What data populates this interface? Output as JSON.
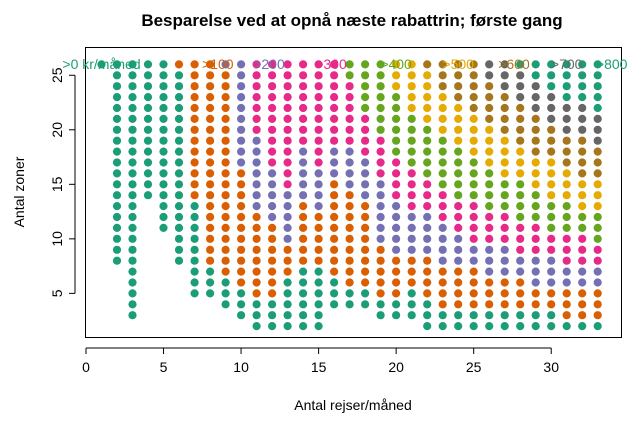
{
  "chart_data": {
    "type": "scatter",
    "title": "Besparelse ved at opnå næste rabattrin; første gang",
    "xlabel": "Antal rejser/måned",
    "ylabel": "Antal zoner",
    "xlim": [
      0,
      34.5
    ],
    "ylim": [
      1,
      27.5
    ],
    "xticks": [
      "0",
      "5",
      "10",
      "15",
      "20",
      "25",
      "30"
    ],
    "yticks": [
      "5",
      "10",
      "15",
      "20",
      "25"
    ],
    "grid": false,
    "legend_position": "top inside plot",
    "legend": [
      {
        "label": ">0 kr/måned",
        "color": "#1B9E77"
      },
      {
        "label": ">100",
        "color": "#D95F02"
      },
      {
        "label": ">200",
        "color": "#7570B3"
      },
      {
        "label": ">300",
        "color": "#E7298A"
      },
      {
        "label": ">400",
        "color": "#66A61E"
      },
      {
        "label": ">500",
        "color": "#E6AB02"
      },
      {
        "label": ">600",
        "color": "#A6761D"
      },
      {
        "label": ">700",
        "color": "#666666"
      },
      {
        "label": ">800",
        "color": "#1B9E77"
      }
    ],
    "columns": [
      {
        "x": 1,
        "range": [
          26,
          26
        ],
        "levels": [
          [
            0,
            26
          ]
        ]
      },
      {
        "x": 2,
        "range": [
          8,
          26
        ],
        "levels": [
          [
            0,
            26
          ]
        ]
      },
      {
        "x": 3,
        "range": [
          3,
          26
        ],
        "levels": [
          [
            0,
            26
          ]
        ]
      },
      {
        "x": 4,
        "range": [
          14,
          26
        ],
        "levels": [
          [
            0,
            26
          ]
        ]
      },
      {
        "x": 5,
        "range": [
          11,
          26
        ],
        "levels": [
          [
            0,
            26
          ]
        ]
      },
      {
        "x": 6,
        "range": [
          8,
          26
        ],
        "levels": [
          [
            0,
            25
          ],
          [
            1,
            26
          ]
        ]
      },
      {
        "x": 7,
        "range": [
          5,
          26
        ],
        "levels": [
          [
            0,
            13
          ],
          [
            1,
            26
          ]
        ]
      },
      {
        "x": 8,
        "range": [
          5,
          26
        ],
        "levels": [
          [
            0,
            7
          ],
          [
            1,
            26
          ]
        ]
      },
      {
        "x": 9,
        "range": [
          4,
          26
        ],
        "levels": [
          [
            0,
            6
          ],
          [
            1,
            25
          ],
          [
            2,
            26
          ]
        ]
      },
      {
        "x": 10,
        "range": [
          3,
          26
        ],
        "levels": [
          [
            0,
            5
          ],
          [
            1,
            16
          ],
          [
            2,
            26
          ]
        ]
      },
      {
        "x": 11,
        "range": [
          2,
          26
        ],
        "levels": [
          [
            0,
            4
          ],
          [
            1,
            12
          ],
          [
            2,
            19
          ],
          [
            3,
            26
          ]
        ]
      },
      {
        "x": 12,
        "range": [
          2,
          26
        ],
        "levels": [
          [
            0,
            4
          ],
          [
            1,
            11
          ],
          [
            2,
            16
          ],
          [
            3,
            26
          ]
        ]
      },
      {
        "x": 13,
        "range": [
          2,
          26
        ],
        "levels": [
          [
            0,
            6
          ],
          [
            1,
            9
          ],
          [
            2,
            14
          ],
          [
            3,
            26
          ]
        ]
      },
      {
        "x": 14,
        "range": [
          2,
          26
        ],
        "levels": [
          [
            0,
            7
          ],
          [
            1,
            13
          ],
          [
            2,
            18
          ],
          [
            3,
            26
          ]
        ]
      },
      {
        "x": 15,
        "range": [
          2,
          26
        ],
        "levels": [
          [
            0,
            7
          ],
          [
            1,
            12
          ],
          [
            2,
            16
          ],
          [
            3,
            26
          ]
        ]
      },
      {
        "x": 16,
        "range": [
          4,
          26
        ],
        "levels": [
          [
            0,
            6
          ],
          [
            1,
            15
          ],
          [
            2,
            18
          ],
          [
            3,
            26
          ]
        ]
      },
      {
        "x": 17,
        "range": [
          4,
          26
        ],
        "levels": [
          [
            0,
            5
          ],
          [
            1,
            14
          ],
          [
            2,
            18
          ],
          [
            3,
            24
          ],
          [
            4,
            26
          ]
        ]
      },
      {
        "x": 18,
        "range": [
          4,
          26
        ],
        "levels": [
          [
            0,
            5
          ],
          [
            1,
            13
          ],
          [
            2,
            17
          ],
          [
            3,
            21
          ],
          [
            4,
            26
          ]
        ]
      },
      {
        "x": 19,
        "range": [
          3,
          26
        ],
        "levels": [
          [
            0,
            4
          ],
          [
            1,
            9
          ],
          [
            2,
            15
          ],
          [
            3,
            19
          ],
          [
            4,
            26
          ]
        ]
      },
      {
        "x": 20,
        "range": [
          3,
          26
        ],
        "levels": [
          [
            0,
            4
          ],
          [
            1,
            8
          ],
          [
            2,
            13
          ],
          [
            3,
            17
          ],
          [
            4,
            23
          ],
          [
            5,
            26
          ]
        ]
      },
      {
        "x": 21,
        "range": [
          3,
          26
        ],
        "levels": [
          [
            0,
            5
          ],
          [
            1,
            8
          ],
          [
            2,
            12
          ],
          [
            3,
            16
          ],
          [
            4,
            21
          ],
          [
            5,
            26
          ]
        ]
      },
      {
        "x": 22,
        "range": [
          2,
          26
        ],
        "levels": [
          [
            0,
            4
          ],
          [
            1,
            8
          ],
          [
            2,
            12
          ],
          [
            3,
            15
          ],
          [
            4,
            20
          ],
          [
            5,
            25
          ],
          [
            6,
            26
          ]
        ]
      },
      {
        "x": 23,
        "range": [
          2,
          26
        ],
        "levels": [
          [
            0,
            3
          ],
          [
            1,
            7
          ],
          [
            2,
            11
          ],
          [
            3,
            14
          ],
          [
            4,
            19
          ],
          [
            5,
            23
          ],
          [
            6,
            26
          ]
        ]
      },
      {
        "x": 24,
        "range": [
          2,
          26
        ],
        "levels": [
          [
            0,
            3
          ],
          [
            1,
            7
          ],
          [
            2,
            10
          ],
          [
            3,
            13
          ],
          [
            4,
            18
          ],
          [
            5,
            22
          ],
          [
            6,
            26
          ]
        ]
      },
      {
        "x": 25,
        "range": [
          2,
          26
        ],
        "levels": [
          [
            0,
            3
          ],
          [
            1,
            7
          ],
          [
            2,
            9
          ],
          [
            3,
            13
          ],
          [
            4,
            17
          ],
          [
            5,
            21
          ],
          [
            6,
            26
          ]
        ]
      },
      {
        "x": 26,
        "range": [
          2,
          26
        ],
        "levels": [
          [
            0,
            3
          ],
          [
            1,
            6
          ],
          [
            2,
            9
          ],
          [
            3,
            12
          ],
          [
            4,
            16
          ],
          [
            5,
            20
          ],
          [
            6,
            24
          ],
          [
            7,
            26
          ]
        ]
      },
      {
        "x": 27,
        "range": [
          2,
          26
        ],
        "levels": [
          [
            0,
            3
          ],
          [
            1,
            6
          ],
          [
            2,
            9
          ],
          [
            3,
            12
          ],
          [
            4,
            15
          ],
          [
            5,
            19
          ],
          [
            6,
            23
          ],
          [
            7,
            26
          ]
        ]
      },
      {
        "x": 28,
        "range": [
          2,
          26
        ],
        "levels": [
          [
            0,
            3
          ],
          [
            1,
            6
          ],
          [
            2,
            8
          ],
          [
            3,
            11
          ],
          [
            4,
            15
          ],
          [
            5,
            18
          ],
          [
            6,
            22
          ],
          [
            7,
            25
          ],
          [
            8,
            26
          ]
        ]
      },
      {
        "x": 29,
        "range": [
          2,
          26
        ],
        "levels": [
          [
            0,
            3
          ],
          [
            1,
            5
          ],
          [
            2,
            8
          ],
          [
            3,
            11
          ],
          [
            4,
            14
          ],
          [
            5,
            17
          ],
          [
            6,
            21
          ],
          [
            7,
            24
          ],
          [
            8,
            26
          ]
        ]
      },
      {
        "x": 30,
        "range": [
          2,
          26
        ],
        "levels": [
          [
            0,
            3
          ],
          [
            1,
            5
          ],
          [
            2,
            8
          ],
          [
            3,
            10
          ],
          [
            4,
            13
          ],
          [
            5,
            17
          ],
          [
            6,
            20
          ],
          [
            7,
            23
          ],
          [
            8,
            26
          ]
        ]
      },
      {
        "x": 31,
        "range": [
          2,
          26
        ],
        "levels": [
          [
            0,
            2
          ],
          [
            1,
            5
          ],
          [
            2,
            7
          ],
          [
            3,
            10
          ],
          [
            4,
            13
          ],
          [
            5,
            16
          ],
          [
            6,
            19
          ],
          [
            7,
            22
          ],
          [
            8,
            26
          ]
        ]
      },
      {
        "x": 32,
        "range": [
          2,
          26
        ],
        "levels": [
          [
            0,
            2
          ],
          [
            1,
            5
          ],
          [
            2,
            7
          ],
          [
            3,
            10
          ],
          [
            4,
            12
          ],
          [
            5,
            15
          ],
          [
            6,
            19
          ],
          [
            7,
            22
          ],
          [
            8,
            26
          ]
        ]
      },
      {
        "x": 33,
        "range": [
          2,
          26
        ],
        "levels": [
          [
            0,
            2
          ],
          [
            1,
            5
          ],
          [
            2,
            7
          ],
          [
            3,
            9
          ],
          [
            4,
            12
          ],
          [
            5,
            15
          ],
          [
            6,
            18
          ],
          [
            7,
            21
          ],
          [
            8,
            26
          ]
        ]
      }
    ]
  }
}
